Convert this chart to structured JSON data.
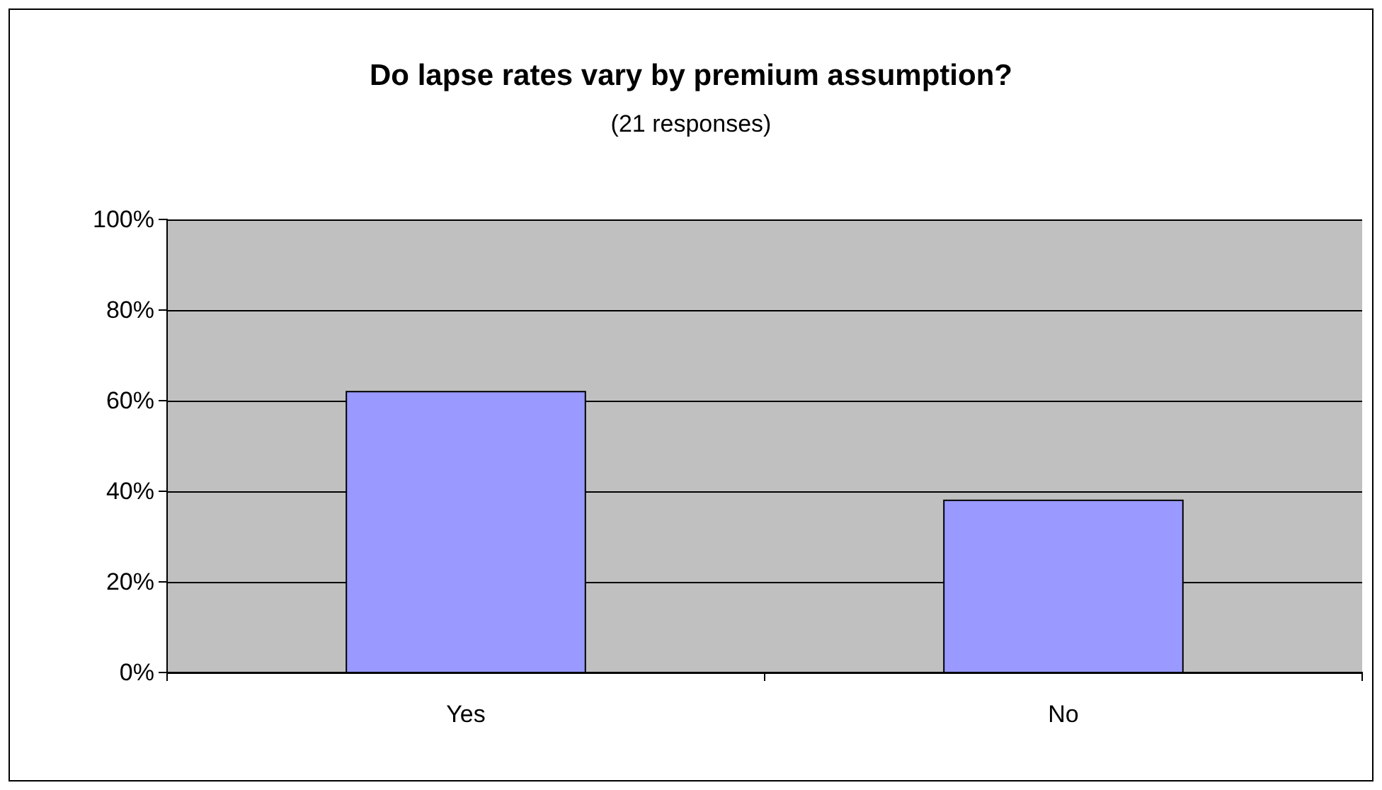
{
  "chart_data": {
    "type": "bar",
    "title": "Do lapse rates vary by premium assumption?",
    "subtitle": "(21 responses)",
    "categories": [
      "Yes",
      "No"
    ],
    "series": [
      {
        "color": "#9999ff",
        "values": [
          62,
          38
        ]
      }
    ],
    "ylim": [
      0,
      100
    ],
    "yticks": [
      {
        "value": 0,
        "label": "0%"
      },
      {
        "value": 20,
        "label": "20%"
      },
      {
        "value": 40,
        "label": "40%"
      },
      {
        "value": 60,
        "label": "60%"
      },
      {
        "value": 80,
        "label": "80%"
      },
      {
        "value": 100,
        "label": "100%"
      }
    ],
    "grid": "y"
  }
}
